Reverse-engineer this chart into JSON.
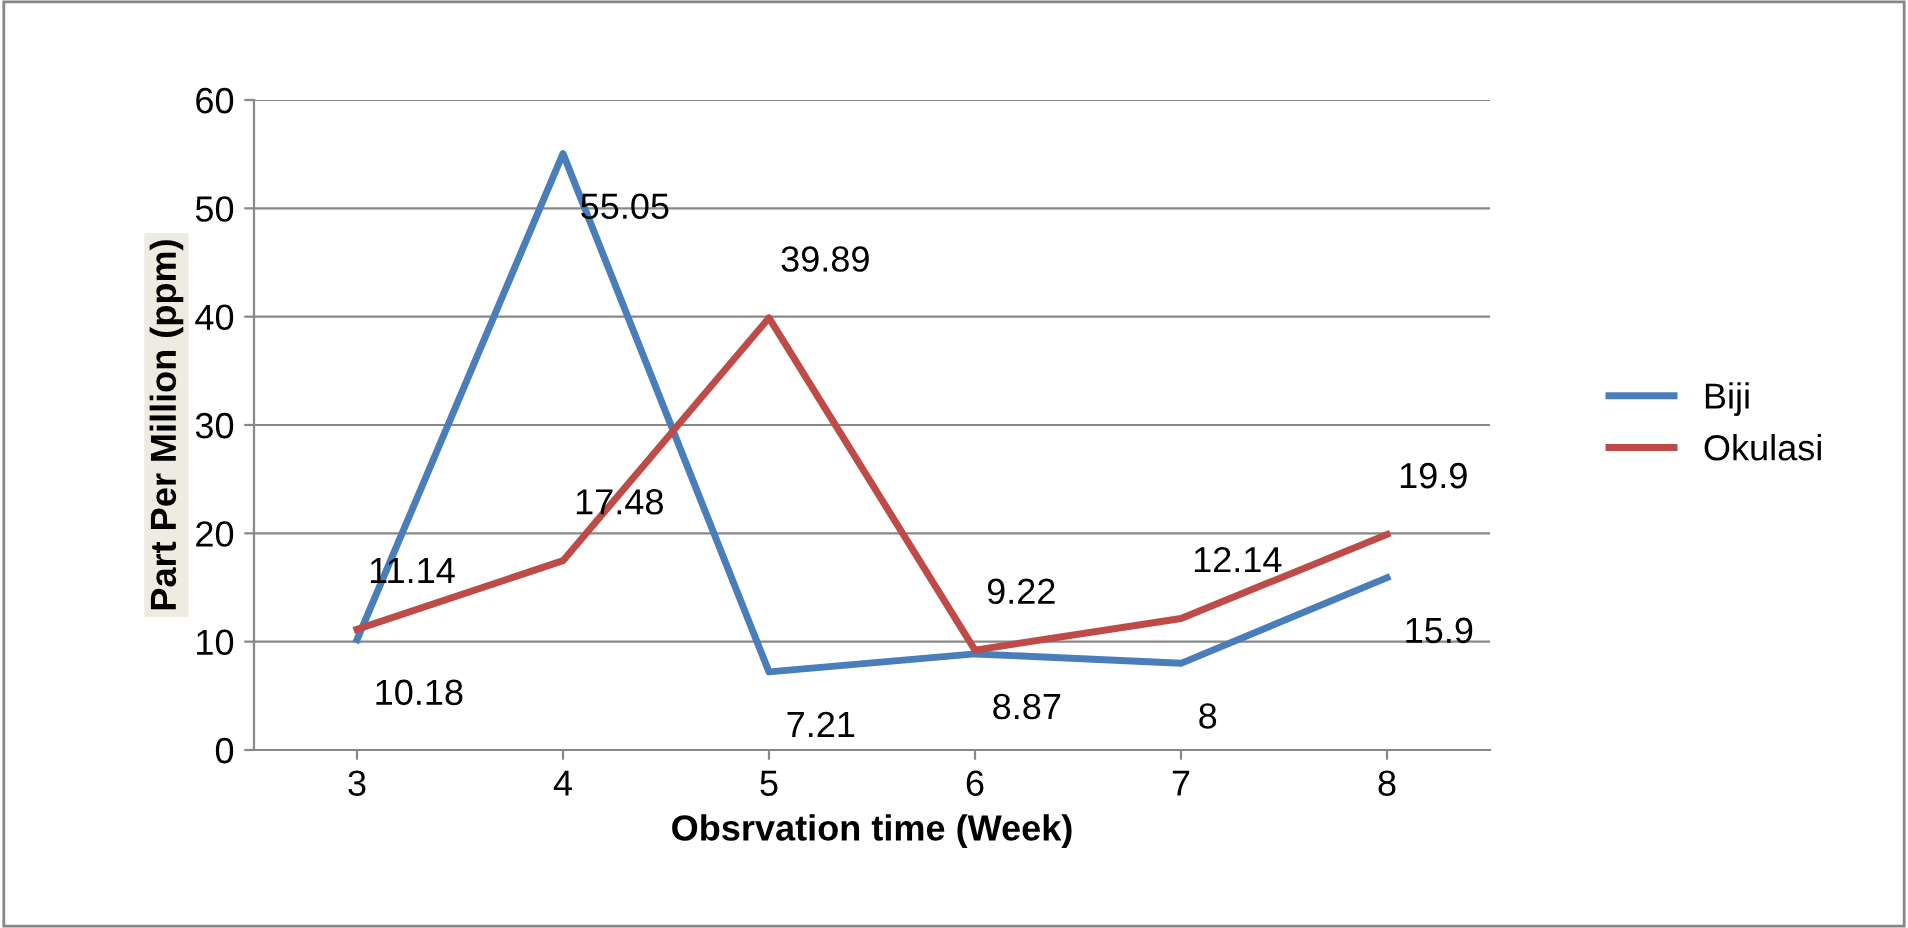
{
  "chart_data": {
    "type": "line",
    "xlabel": "Obsrvation time (Week)",
    "ylabel": "Part Per Million (ppm)",
    "categories": [
      "3",
      "4",
      "5",
      "6",
      "7",
      "8"
    ],
    "series": [
      {
        "name": "Biji",
        "color": "#4a7ebb",
        "values": [
          10.18,
          55.05,
          7.21,
          8.87,
          8,
          15.9
        ]
      },
      {
        "name": "Okulasi",
        "color": "#be4b48",
        "values": [
          11.14,
          17.48,
          39.89,
          9.22,
          12.14,
          19.9
        ]
      }
    ],
    "ylim": [
      0,
      60
    ],
    "yticks": [
      0,
      10,
      20,
      30,
      40,
      50,
      60
    ],
    "grid": "y",
    "legend": "right",
    "data_labels": true,
    "marker": "none",
    "line_style": "solid"
  }
}
